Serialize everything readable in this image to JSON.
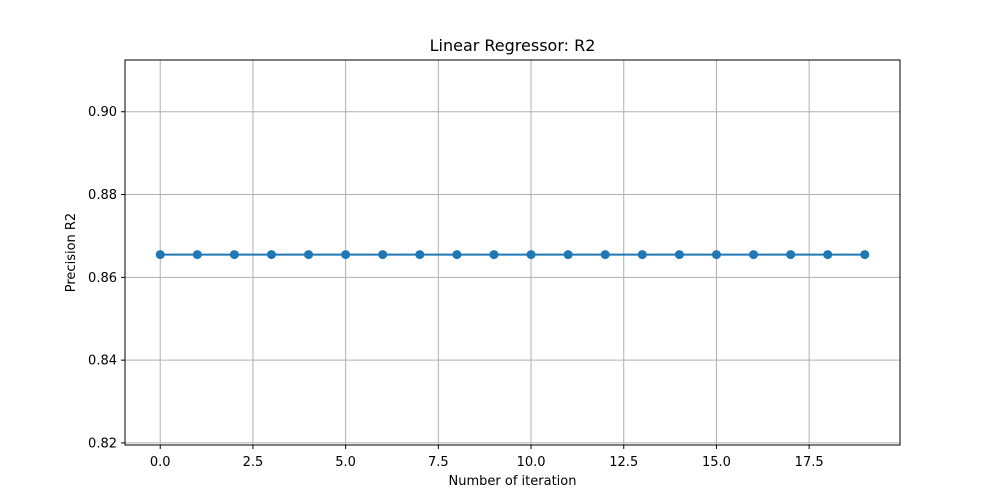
{
  "chart_data": {
    "type": "line",
    "title": "Linear Regressor: R2",
    "xlabel": "Number of iteration",
    "ylabel": "Precision R2",
    "xlim": [
      -0.95,
      19.95
    ],
    "ylim": [
      0.8195,
      0.9125
    ],
    "xticks": [
      0.0,
      2.5,
      5.0,
      7.5,
      10.0,
      12.5,
      15.0,
      17.5
    ],
    "xtick_labels": [
      "0.0",
      "2.5",
      "5.0",
      "7.5",
      "10.0",
      "12.5",
      "15.0",
      "17.5"
    ],
    "yticks": [
      0.82,
      0.84,
      0.86,
      0.88,
      0.9
    ],
    "ytick_labels": [
      "0.82",
      "0.84",
      "0.86",
      "0.88",
      "0.90"
    ],
    "grid": true,
    "marker": "circle",
    "colors": {
      "series": "#1f77b4",
      "grid": "#b0b0b0",
      "axes": "#000000"
    },
    "series": [
      {
        "x": [
          0,
          1,
          2,
          3,
          4,
          5,
          6,
          7,
          8,
          9,
          10,
          11,
          12,
          13,
          14,
          15,
          16,
          17,
          18,
          19
        ],
        "values": [
          0.8655,
          0.8655,
          0.8655,
          0.8655,
          0.8655,
          0.8655,
          0.8655,
          0.8655,
          0.8655,
          0.8655,
          0.8655,
          0.8655,
          0.8655,
          0.8655,
          0.8655,
          0.8655,
          0.8655,
          0.8655,
          0.8655,
          0.8655
        ]
      }
    ]
  }
}
